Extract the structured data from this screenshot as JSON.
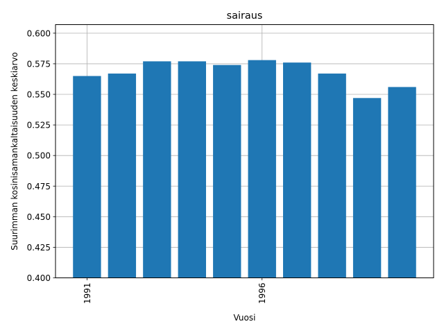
{
  "chart_data": {
    "type": "bar",
    "title": "sairaus",
    "xlabel": "Vuosi",
    "ylabel": "Suurimman kosinisamankaltaisuuden keskiarvo",
    "x": [
      1991,
      1992,
      1993,
      1994,
      1995,
      1996,
      1997,
      1998,
      1999,
      2000
    ],
    "values": [
      0.565,
      0.567,
      0.577,
      0.577,
      0.574,
      0.578,
      0.576,
      0.567,
      0.547,
      0.556
    ],
    "xticks": [
      1991,
      1996
    ],
    "xtick_labels": [
      "1991",
      "1996"
    ],
    "yticks": [
      0.4,
      0.425,
      0.45,
      0.475,
      0.5,
      0.525,
      0.55,
      0.575,
      0.6
    ],
    "ytick_labels": [
      "0.400",
      "0.425",
      "0.450",
      "0.475",
      "0.500",
      "0.525",
      "0.550",
      "0.575",
      "0.600"
    ],
    "ylim": [
      0.4,
      0.607
    ],
    "xlim": [
      1990.1,
      2000.9
    ],
    "grid": true,
    "bar_color": "#1f77b4",
    "grid_color": "#b0b0b0"
  }
}
